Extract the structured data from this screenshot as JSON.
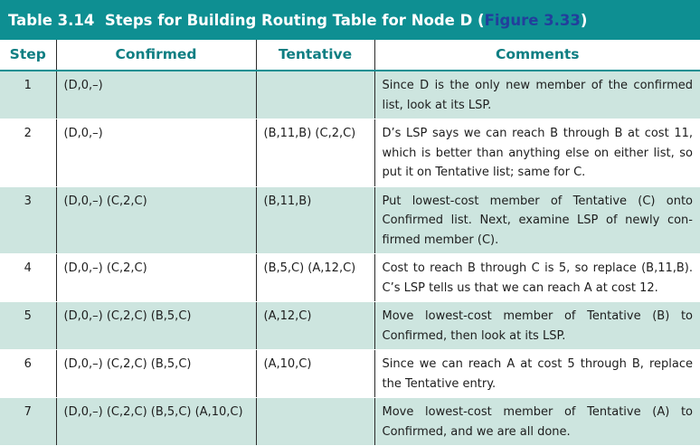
{
  "title": {
    "text": "Table 3.14  Steps for Building Routing Table for Node D (",
    "link": "Figure 3.33",
    "close": ")"
  },
  "headers": [
    "Step",
    "Confirmed",
    "Tentative",
    "Comments"
  ],
  "rows": [
    {
      "step": "1",
      "confirmed": "(D,0,–)",
      "tentative": "",
      "comments": "Since D is the only new member of the confirmed list, look at its LSP."
    },
    {
      "step": "2",
      "confirmed": "(D,0,–)",
      "tentative": "(B,11,B) (C,2,C)",
      "comments": "D’s LSP says we can reach B through B at cost 11, which is better than anything else on either list, so put it on Tentative list; same for C."
    },
    {
      "step": "3",
      "confirmed": "(D,0,–) (C,2,C)",
      "tentative": "(B,11,B)",
      "comments": "Put lowest-cost member of Tentative (C) onto Confirmed list. Next, examine LSP of newly con-firmed member (C)."
    },
    {
      "step": "4",
      "confirmed": "(D,0,–) (C,2,C)",
      "tentative": "(B,5,C) (A,12,C)",
      "comments": "Cost to reach B through C is 5, so replace (B,11,B). C’s LSP tells us that we can reach A at cost 12."
    },
    {
      "step": "5",
      "confirmed": "(D,0,–) (C,2,C) (B,5,C)",
      "tentative": "(A,12,C)",
      "comments": "Move lowest-cost member of Tentative (B) to Confirmed, then look at its LSP."
    },
    {
      "step": "6",
      "confirmed": "(D,0,–) (C,2,C) (B,5,C)",
      "tentative": "(A,10,C)",
      "comments": "Since we can reach A at cost 5 through B, replace the Tentative entry."
    },
    {
      "step": "7",
      "confirmed": "(D,0,–) (C,2,C) (B,5,C) (A,10,C)",
      "tentative": "",
      "comments": "Move lowest-cost member of Tentative (A) to Confirmed, and we are all done."
    }
  ],
  "colors": {
    "title_bg": "#0e8f92",
    "title_text": "#ffffff",
    "link": "#223f9c",
    "header_text": "#0e7e82",
    "row_shade": "#cde5df"
  }
}
